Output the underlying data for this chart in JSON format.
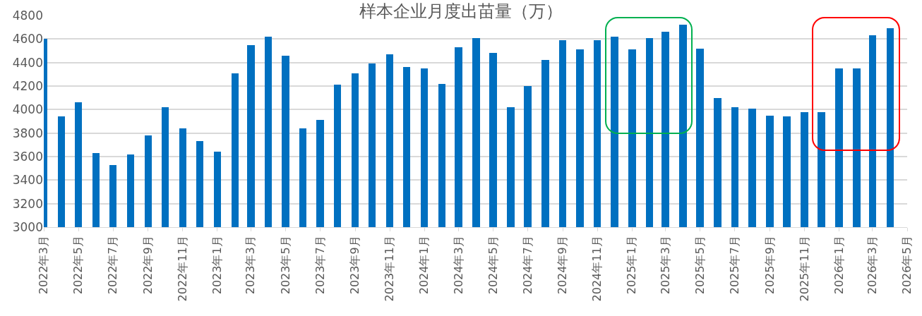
{
  "chart_data": {
    "type": "bar",
    "title": "样本企业月度出苗量（万）",
    "x": [
      "2022-03",
      "2022-04",
      "2022-05",
      "2022-06",
      "2022-07",
      "2022-08",
      "2022-09",
      "2022-10",
      "2022-11",
      "2022-12",
      "2023-01",
      "2023-02",
      "2023-03",
      "2023-04",
      "2023-05",
      "2023-06",
      "2023-07",
      "2023-08",
      "2023-09",
      "2023-10",
      "2023-11",
      "2023-12",
      "2024-01",
      "2024-02",
      "2024-03",
      "2024-04",
      "2024-05",
      "2024-06",
      "2024-07",
      "2024-08",
      "2024-09",
      "2024-10",
      "2024-11",
      "2024-12",
      "2025-01",
      "2025-02",
      "2025-03",
      "2025-04",
      "2025-05",
      "2025-06",
      "2025-07",
      "2025-08",
      "2025-09",
      "2025-10",
      "2025-11",
      "2025-12",
      "2026-01",
      "2026-02",
      "2026-03",
      "2026-04"
    ],
    "values": [
      4600,
      3940,
      4060,
      3630,
      3530,
      3620,
      3780,
      4020,
      3840,
      3730,
      3640,
      4310,
      4550,
      4620,
      4460,
      3840,
      3910,
      4210,
      4310,
      4390,
      4470,
      4360,
      4350,
      4220,
      4530,
      4610,
      4480,
      4020,
      4200,
      4420,
      4590,
      4510,
      4590,
      4620,
      4510,
      4610,
      4660,
      4720,
      4520,
      4100,
      4020,
      4010,
      3950,
      3940,
      3980,
      3980,
      4350,
      4350,
      4630,
      4690
    ],
    "color": "#0070c0",
    "xlim": [
      "2022-03",
      "2026-05"
    ],
    "xticks": [
      {
        "value": "2022-03",
        "label": "2022年3月"
      },
      {
        "value": "2022-05",
        "label": "2022年5月"
      },
      {
        "value": "2022-07",
        "label": "2022年7月"
      },
      {
        "value": "2022-09",
        "label": "2022年9月"
      },
      {
        "value": "2022-11",
        "label": "2022年11月"
      },
      {
        "value": "2023-01",
        "label": "2023年1月"
      },
      {
        "value": "2023-03",
        "label": "2023年3月"
      },
      {
        "value": "2023-05",
        "label": "2023年5月"
      },
      {
        "value": "2023-07",
        "label": "2023年7月"
      },
      {
        "value": "2023-09",
        "label": "2023年9月"
      },
      {
        "value": "2023-11",
        "label": "2023年11月"
      },
      {
        "value": "2024-01",
        "label": "2024年1月"
      },
      {
        "value": "2024-03",
        "label": "2024年3月"
      },
      {
        "value": "2024-05",
        "label": "2024年5月"
      },
      {
        "value": "2024-07",
        "label": "2024年7月"
      },
      {
        "value": "2024-09",
        "label": "2024年9月"
      },
      {
        "value": "2024-11",
        "label": "2024年11月"
      },
      {
        "value": "2025-01",
        "label": "2025年1月"
      },
      {
        "value": "2025-03",
        "label": "2025年3月"
      },
      {
        "value": "2025-05",
        "label": "2025年5月"
      },
      {
        "value": "2025-07",
        "label": "2025年7月"
      },
      {
        "value": "2025-09",
        "label": "2025年9月"
      },
      {
        "value": "2025-11",
        "label": "2025年11月"
      },
      {
        "value": "2026-01",
        "label": "2026年1月"
      },
      {
        "value": "2026-03",
        "label": "2026年3月"
      },
      {
        "value": "2026-05",
        "label": "2026年5月"
      }
    ],
    "ylim": [
      3000,
      4800
    ],
    "yticks": [
      3000,
      3200,
      3400,
      3600,
      3800,
      4000,
      4200,
      4400,
      4600,
      4800
    ],
    "grid": "y"
  }
}
